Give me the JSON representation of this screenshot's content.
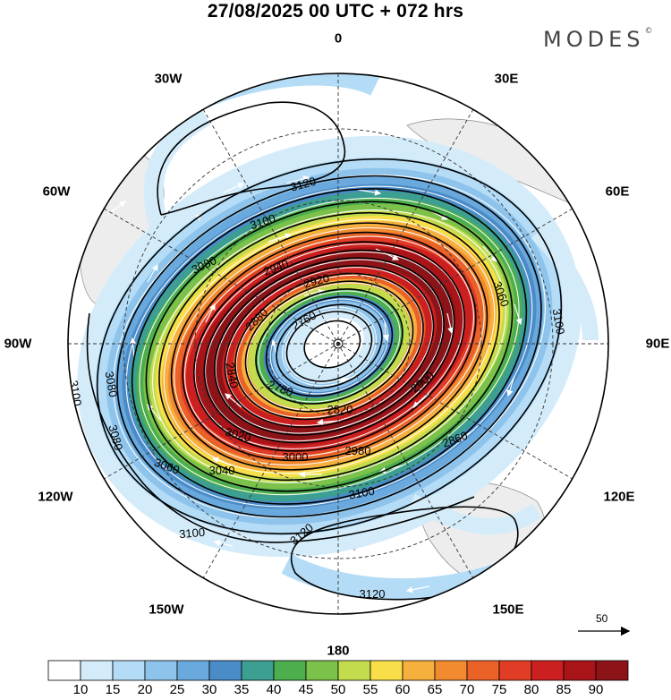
{
  "title": "27/08/2025  00 UTC  + 072 hrs",
  "brand": "MODES",
  "brand_mark": "©",
  "longitude_labels": {
    "n0": "0",
    "e30": "30E",
    "e60": "60E",
    "e90": "90E",
    "e120": "120E",
    "e150": "150E",
    "s180": "180",
    "w150": "150W",
    "w120": "120W",
    "w90": "90W",
    "w60": "60W",
    "w30": "30W"
  },
  "contour_labels": [
    "3120",
    "3100",
    "3080",
    "3060",
    "3040",
    "3020",
    "3000",
    "2980",
    "2960",
    "2940",
    "2920",
    "2900",
    "2880",
    "2860",
    "2840",
    "2820",
    "2800",
    "2780",
    "2760"
  ],
  "colorbar": {
    "ticks": [
      "10",
      "15",
      "20",
      "25",
      "30",
      "35",
      "40",
      "45",
      "50",
      "55",
      "60",
      "65",
      "70",
      "75",
      "80",
      "85",
      "90"
    ],
    "colors": [
      "#ffffff",
      "#d4ecfa",
      "#b4dcf6",
      "#8ec4ec",
      "#6aa9dd",
      "#4a8cc8",
      "#3d9e92",
      "#4cae4c",
      "#7cc24a",
      "#c2dc4e",
      "#f8df4a",
      "#f6b03e",
      "#f28a30",
      "#ea6228",
      "#e03c26",
      "#cc2020",
      "#a81418",
      "#8c1418"
    ]
  },
  "reference_vector": {
    "label": "50",
    "icon": "arrow-right-icon"
  }
}
